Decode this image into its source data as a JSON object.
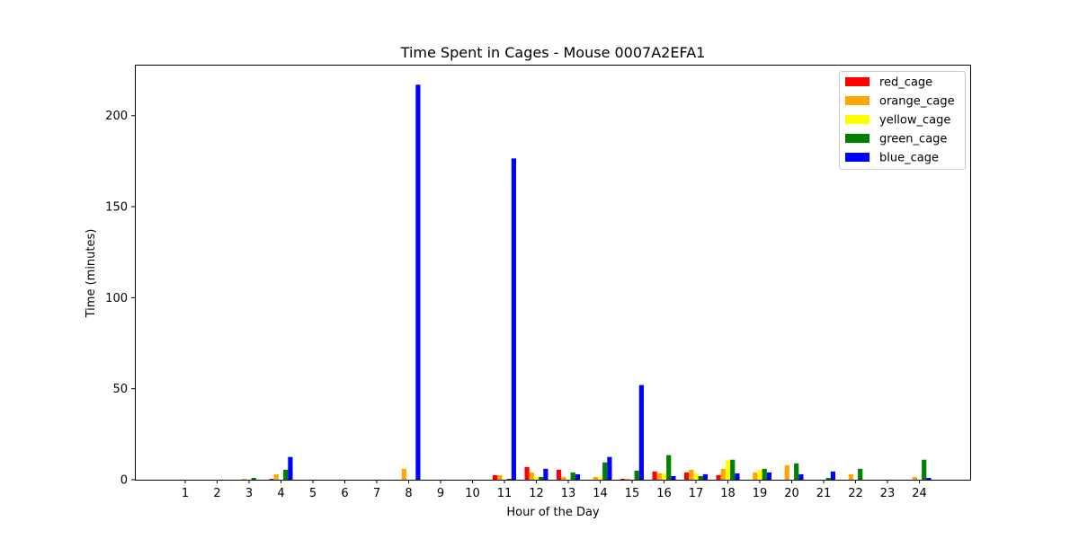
{
  "chart_data": {
    "type": "bar",
    "title": "Time Spent in Cages - Mouse 0007A2EFA1",
    "xlabel": "Hour of the Day",
    "ylabel": "Time (minutes)",
    "categories": [
      "1",
      "2",
      "3",
      "4",
      "5",
      "6",
      "7",
      "8",
      "9",
      "10",
      "11",
      "12",
      "13",
      "14",
      "15",
      "16",
      "17",
      "18",
      "19",
      "20",
      "21",
      "22",
      "23",
      "24"
    ],
    "ylim": [
      0,
      228
    ],
    "yticks": [
      0,
      50,
      100,
      150,
      200
    ],
    "grid": false,
    "legend_position": "top-right",
    "series": [
      {
        "name": "red_cage",
        "color": "#ff0000",
        "values": [
          0,
          0,
          0,
          0.5,
          0,
          0,
          0,
          0,
          0,
          0,
          2.5,
          7,
          5.5,
          0,
          0.5,
          4.5,
          4,
          2.5,
          0,
          0,
          0,
          0,
          0,
          0
        ]
      },
      {
        "name": "orange_cage",
        "color": "#ffa500",
        "values": [
          0,
          0,
          0.5,
          3,
          0,
          0,
          0,
          6,
          0,
          0,
          2.5,
          4,
          1.5,
          1.5,
          0.5,
          3.5,
          5.5,
          6,
          4,
          8,
          0,
          3,
          0,
          1.5
        ]
      },
      {
        "name": "yellow_cage",
        "color": "#ffff00",
        "values": [
          0,
          0,
          0,
          0,
          0,
          0,
          0,
          0,
          0,
          0,
          0,
          1.5,
          0,
          1.5,
          0,
          3.5,
          3.5,
          10.5,
          5.5,
          0,
          0,
          0,
          0,
          0
        ]
      },
      {
        "name": "green_cage",
        "color": "#008000",
        "values": [
          0,
          0,
          1,
          5.5,
          0,
          0,
          0,
          0,
          0,
          0,
          0.5,
          1.5,
          4,
          9.5,
          5,
          13.5,
          2,
          11,
          6,
          9,
          1,
          6,
          0,
          11
        ]
      },
      {
        "name": "blue_cage",
        "color": "#0000ff",
        "values": [
          0,
          0,
          0,
          12.5,
          0,
          0,
          0,
          217,
          0,
          0,
          176.5,
          6,
          3,
          12.5,
          52,
          2,
          3,
          3.5,
          4,
          3,
          4.5,
          0,
          0,
          1
        ]
      }
    ]
  }
}
